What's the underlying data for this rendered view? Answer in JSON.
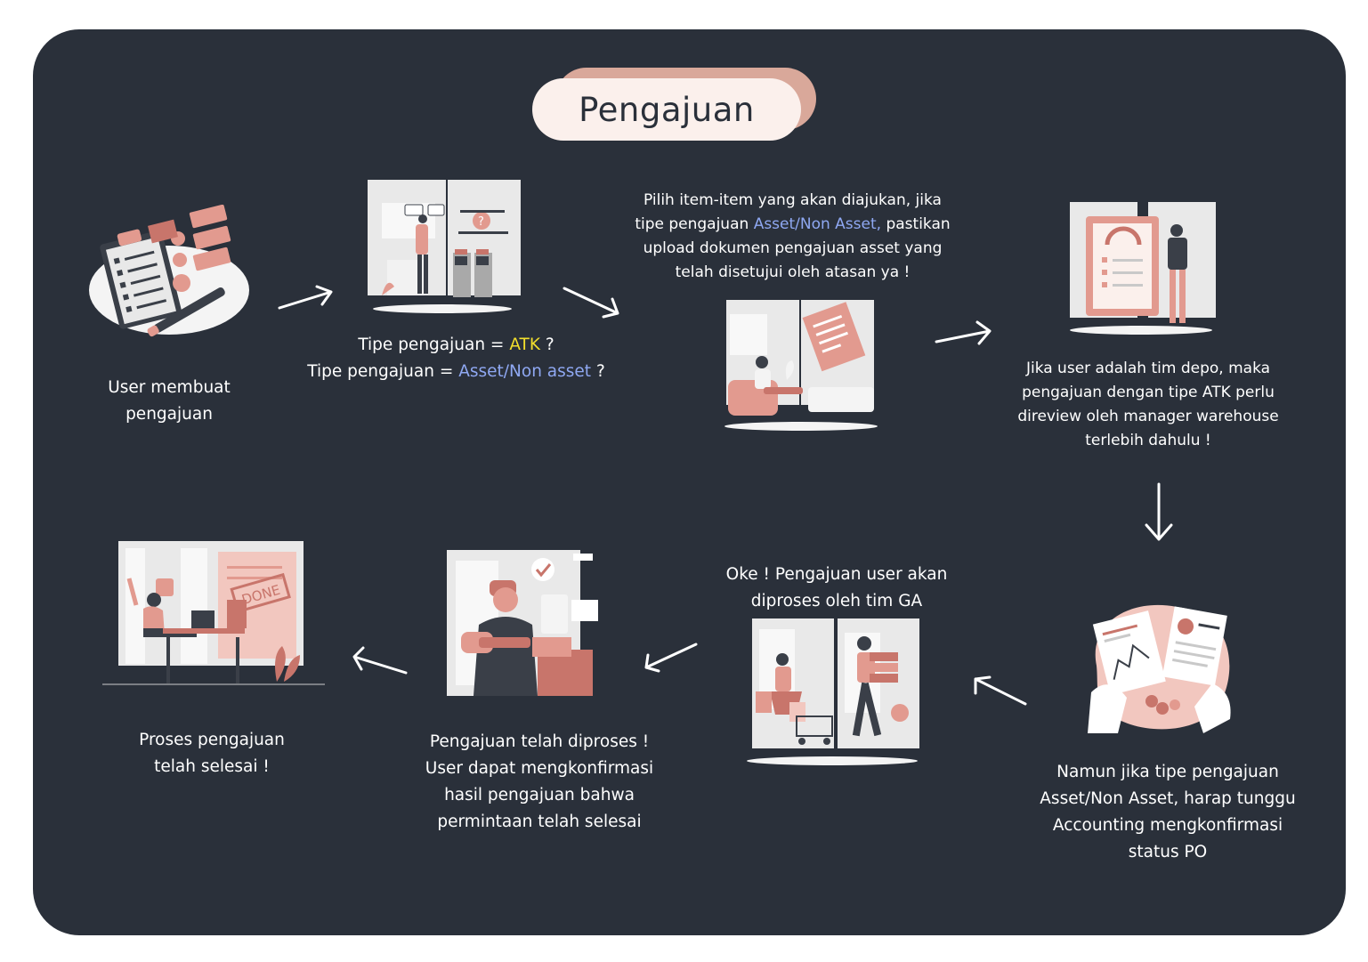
{
  "title": "Pengajuan",
  "steps": {
    "s1": {
      "line1": "User membuat",
      "line2": "pengajuan",
      "icon": "checklist-review-illustration"
    },
    "s2": {
      "l1_prefix": "Tipe pengajuan = ",
      "l1_hl": "ATK",
      "l1_suffix": " ?",
      "l2_prefix": "Tipe pengajuan = ",
      "l2_hl": "Asset/Non asset",
      "l2_suffix": " ?",
      "icon": "yes-no-decision-illustration"
    },
    "s3": {
      "line1": "Pilih item-item yang akan diajukan, jika",
      "line2_prefix": "tipe pengajuan ",
      "line2_hl": "Asset/Non Asset,",
      "line2_suffix": " pastikan",
      "line3": "upload dokumen pengajuan asset yang",
      "line4": "telah disetujui oleh atasan ya !",
      "icon": "document-upload-illustration"
    },
    "s4": {
      "line1": "Jika user adalah tim depo, maka",
      "line2": "pengajuan dengan tipe ATK perlu",
      "line3": "direview oleh manager warehouse",
      "line4": "terlebih dahulu !",
      "icon": "manager-review-illustration"
    },
    "s5": {
      "line1": "Namun jika tipe pengajuan",
      "line2": "Asset/Non Asset, harap tunggu",
      "line3": "Accounting mengkonfirmasi",
      "line4": "status PO",
      "icon": "accounting-report-illustration"
    },
    "s6": {
      "line1": "Oke ! Pengajuan user akan",
      "line2": "diproses oleh tim GA",
      "icon": "shopping-process-illustration"
    },
    "s7": {
      "line1": "Pengajuan telah diproses !",
      "line2": "User dapat mengkonfirmasi",
      "line3": "hasil pengajuan bahwa",
      "line4": "permintaan telah selesai",
      "icon": "delivery-confirm-illustration"
    },
    "s8": {
      "line1": "Proses pengajuan",
      "line2": "telah selesai !",
      "icon": "done-celebration-illustration"
    }
  },
  "colors": {
    "panel": "#2a303a",
    "accent_pink": "#e29a8f",
    "accent_dark_pink": "#c8756b",
    "title_pill": "#fbf0ec",
    "title_shadow": "#d9a89a",
    "highlight_yellow": "#f3df2c",
    "highlight_blue": "#8fa8f2"
  }
}
